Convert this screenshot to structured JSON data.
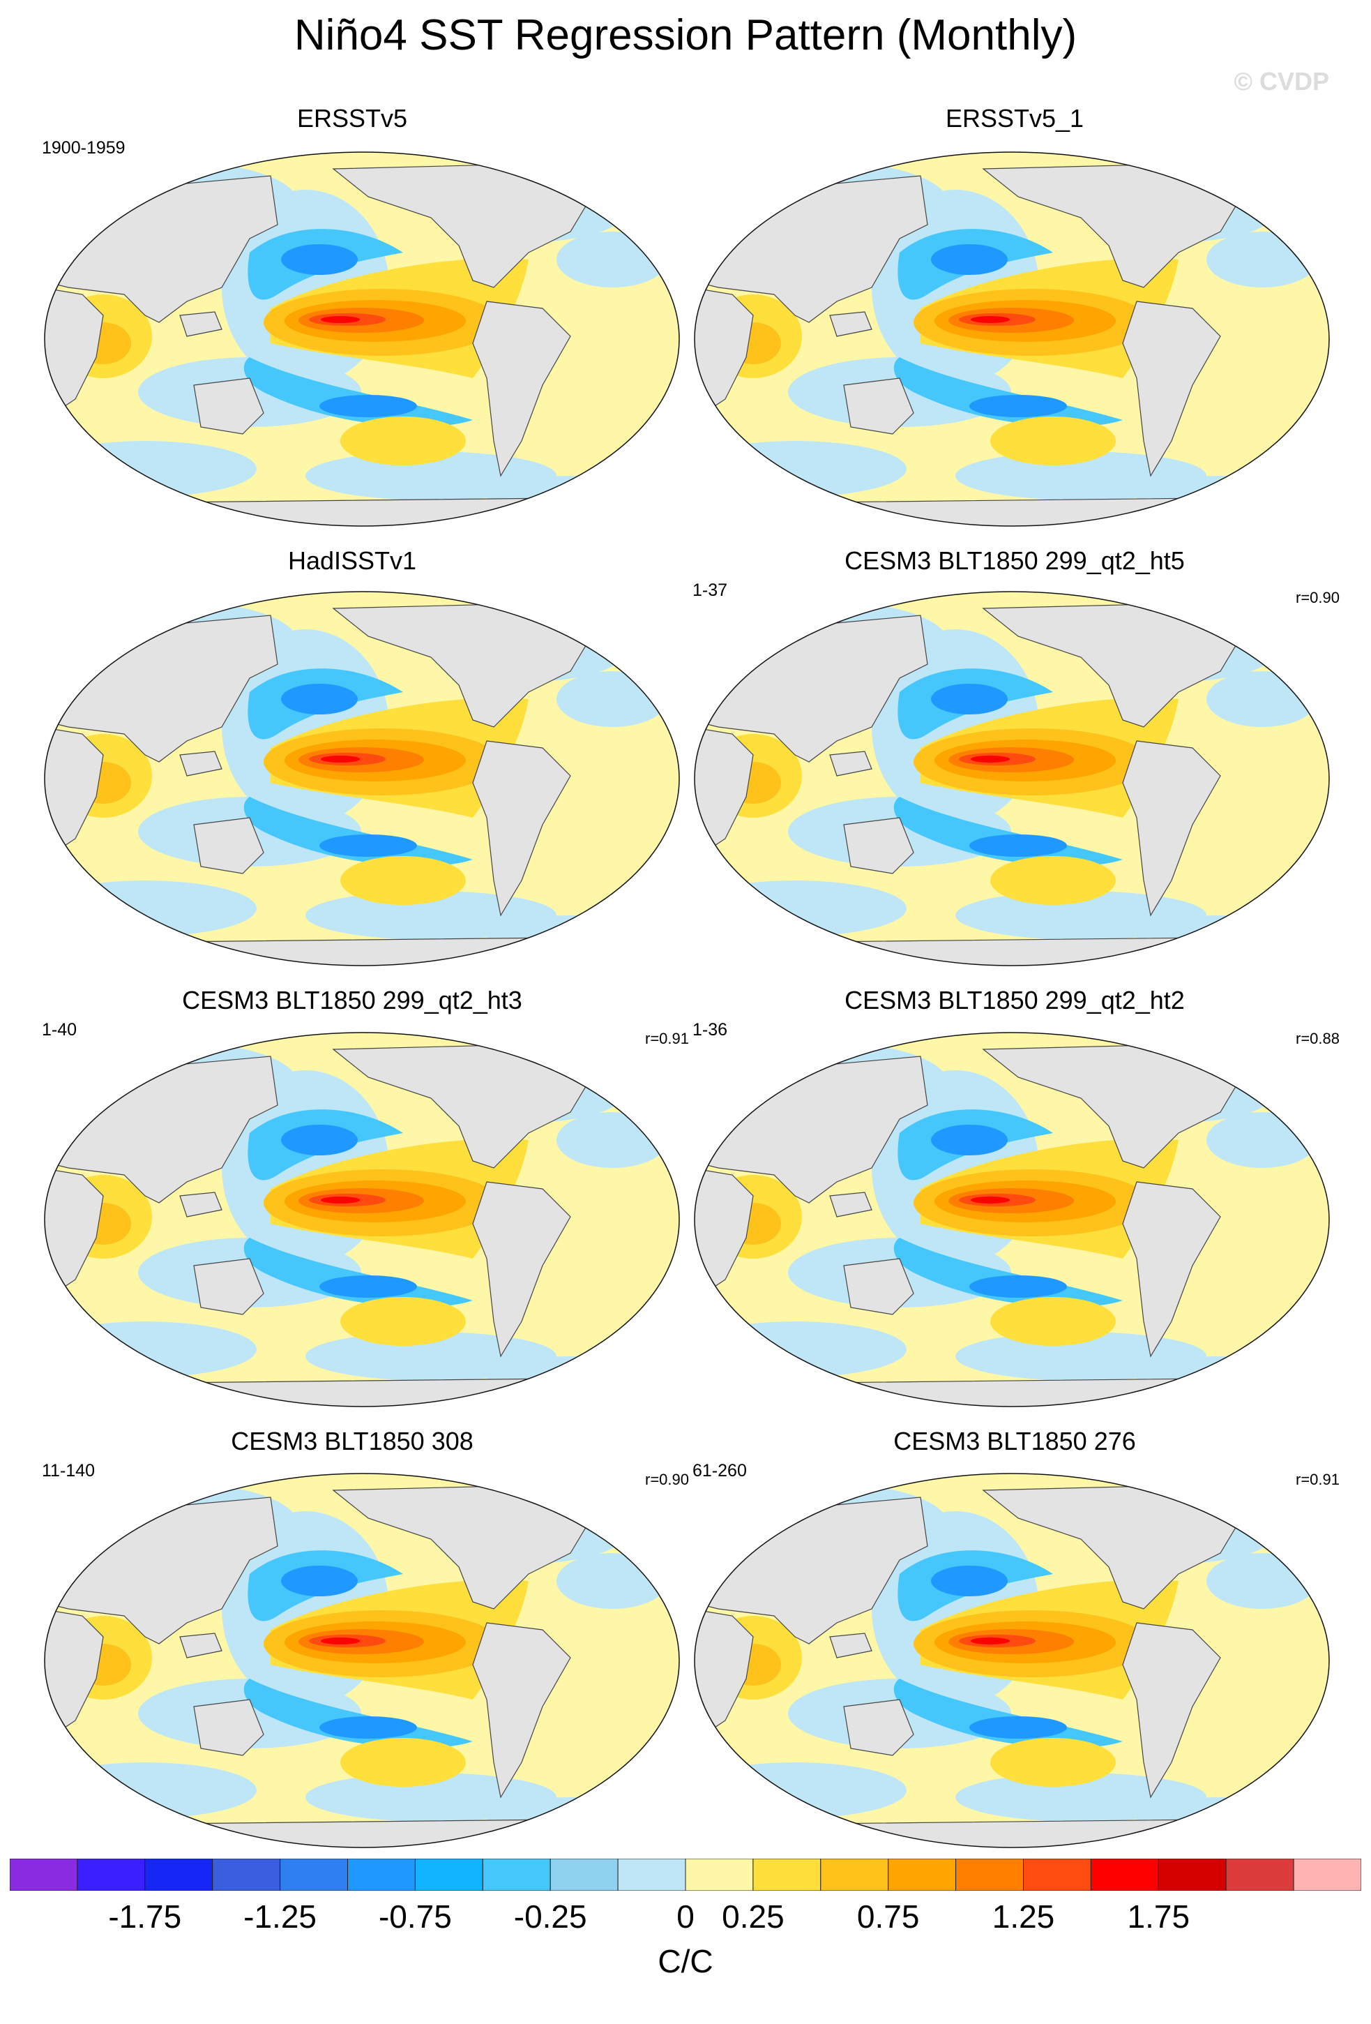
{
  "title": "Niño4 SST Regression Pattern (Monthly)",
  "copyright": "© CVDP",
  "panels": [
    {
      "title": "ERSSTv5",
      "years": "1900-1959",
      "corr": ""
    },
    {
      "title": "ERSSTv5_1",
      "years": "",
      "corr": ""
    },
    {
      "title": "HadISSTv1",
      "years": "",
      "corr": ""
    },
    {
      "title": "CESM3 BLT1850 299_qt2_ht5",
      "years": "1-37",
      "corr": "r=0.90"
    },
    {
      "title": "CESM3 BLT1850 299_qt2_ht3",
      "years": "1-40",
      "corr": "r=0.91"
    },
    {
      "title": "CESM3 BLT1850 299_qt2_ht2",
      "years": "1-36",
      "corr": "r=0.88"
    },
    {
      "title": "CESM3 BLT1850 308",
      "years": "11-140",
      "corr": "r=0.90"
    },
    {
      "title": "CESM3 BLT1850 276",
      "years": "61-260",
      "corr": "r=0.91"
    }
  ],
  "colorbar": {
    "units": "C/C",
    "tick_labels": [
      "-1.75",
      "-1.25",
      "-0.75",
      "-0.25",
      "0",
      "0.25",
      "0.75",
      "1.25",
      "1.75"
    ],
    "colors": [
      "#8a2be2",
      "#3b1fff",
      "#1626f5",
      "#3a5fde",
      "#2f7ff0",
      "#1f99ff",
      "#12b4ff",
      "#46c7fb",
      "#8fd2f0",
      "#bfe6f7",
      "#fff7a8",
      "#ffdf3b",
      "#ffc21a",
      "#ffa500",
      "#ff7f00",
      "#ff4a10",
      "#ff0000",
      "#d60000",
      "#dd3c3c",
      "#ffb3b3"
    ]
  }
}
